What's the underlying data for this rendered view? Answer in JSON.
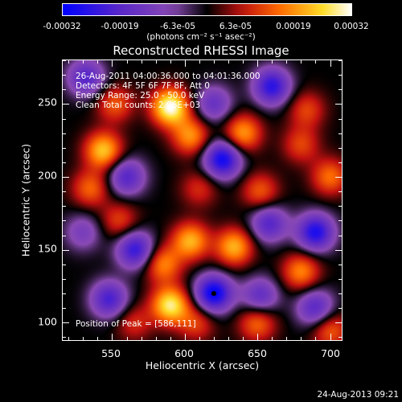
{
  "chart_data": {
    "type": "heatmap",
    "title": "Reconstructed RHESSI Image",
    "xlabel": "Heliocentric X (arcsec)",
    "ylabel": "Heliocentric Y (arcsec)",
    "xlim": [
      516,
      708
    ],
    "ylim": [
      88,
      280
    ],
    "xticks": [
      "550",
      "600",
      "650",
      "700"
    ],
    "yticks": [
      "100",
      "150",
      "200",
      "250"
    ],
    "grid": false,
    "colorbar": {
      "ticks": [
        "-0.00032",
        "-0.00019",
        "-6.3e-05",
        "6.3e-05",
        "0.00019",
        "0.00032"
      ],
      "units": "(photons cm⁻² s⁻¹ asec⁻²)",
      "range": [
        -0.00032,
        0.00032
      ],
      "colors": [
        "#0000ff",
        "#5a28c8",
        "#8a4ab4",
        "#000000",
        "#c01010",
        "#ff6a00",
        "#ffdc28",
        "#ffffff"
      ]
    },
    "annotations": {
      "time_range": "26-Aug-2011 04:00:36.000 to 04:01:36.000",
      "detectors": "Detectors: 4F 5F 6F 7F 8F, Att 0",
      "energy": "Energy Range: 25.0 - 50.0 keV",
      "clean": "Clean     Total counts: 2.06E+03",
      "peak": "Position of Peak = [586,111]"
    },
    "peak_position": [
      586,
      111
    ],
    "features": [
      {
        "x": 620,
        "y": 120,
        "value": -0.00032
      },
      {
        "x": 626,
        "y": 212,
        "value": -0.0003
      },
      {
        "x": 532,
        "y": 268,
        "value": -0.0002
      },
      {
        "x": 560,
        "y": 200,
        "value": -0.0002
      },
      {
        "x": 660,
        "y": 262,
        "value": -0.00026
      },
      {
        "x": 690,
        "y": 162,
        "value": -0.00028
      },
      {
        "x": 566,
        "y": 150,
        "value": -0.00025
      },
      {
        "x": 658,
        "y": 168,
        "value": -0.0002
      },
      {
        "x": 548,
        "y": 116,
        "value": -0.00022
      },
      {
        "x": 690,
        "y": 110,
        "value": -0.0002
      },
      {
        "x": 620,
        "y": 250,
        "value": -0.00016
      },
      {
        "x": 530,
        "y": 162,
        "value": -0.00012
      },
      {
        "x": 652,
        "y": 118,
        "value": -0.00018
      },
      {
        "x": 590,
        "y": 248,
        "value": 0.00032
      },
      {
        "x": 604,
        "y": 228,
        "value": 0.00019
      },
      {
        "x": 640,
        "y": 230,
        "value": 0.0002
      },
      {
        "x": 544,
        "y": 218,
        "value": 0.00024
      },
      {
        "x": 535,
        "y": 192,
        "value": 0.00015
      },
      {
        "x": 680,
        "y": 222,
        "value": 0.00012
      },
      {
        "x": 684,
        "y": 246,
        "value": 0.00012
      },
      {
        "x": 604,
        "y": 156,
        "value": 0.00022
      },
      {
        "x": 585,
        "y": 140,
        "value": 0.00018
      },
      {
        "x": 634,
        "y": 152,
        "value": 0.00022
      },
      {
        "x": 590,
        "y": 112,
        "value": 0.00028
      },
      {
        "x": 652,
        "y": 190,
        "value": 0.00014
      },
      {
        "x": 555,
        "y": 170,
        "value": 0.00012
      },
      {
        "x": 552,
        "y": 250,
        "value": 0.00014
      },
      {
        "x": 650,
        "y": 100,
        "value": 0.00016
      },
      {
        "x": 680,
        "y": 135,
        "value": 0.00018
      },
      {
        "x": 610,
        "y": 192,
        "value": 0.0001
      },
      {
        "x": 700,
        "y": 200,
        "value": 0.00016
      },
      {
        "x": 565,
        "y": 100,
        "value": 0.0001
      },
      {
        "x": 700,
        "y": 95,
        "value": 0.00015
      },
      {
        "x": 608,
        "y": 100,
        "value": 0.00012
      }
    ]
  },
  "timestamp": "24-Aug-2013 09:21"
}
